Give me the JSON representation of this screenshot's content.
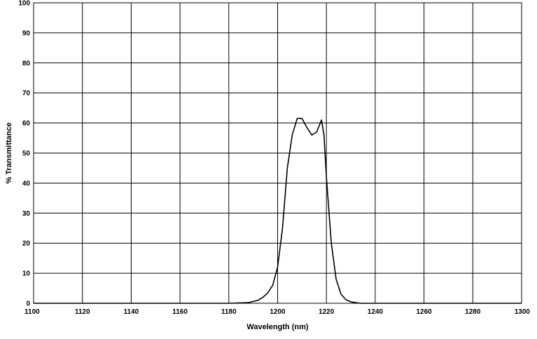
{
  "chart_data": {
    "type": "line",
    "title": "",
    "xlabel": "Wavelength (nm)",
    "ylabel": "% Transmittance",
    "xlim": [
      1100,
      1300
    ],
    "ylim": [
      0,
      100
    ],
    "x_ticks": [
      1100,
      1120,
      1140,
      1160,
      1180,
      1200,
      1220,
      1240,
      1260,
      1280,
      1300
    ],
    "y_ticks": [
      0,
      10,
      20,
      30,
      40,
      50,
      60,
      70,
      80,
      90,
      100
    ],
    "x_tick_labels": [
      "1100",
      "1120",
      "1140",
      "1160",
      "1180",
      "1200",
      "1220",
      "1240",
      "1260",
      "1280",
      "1300"
    ],
    "y_tick_labels": [
      "0",
      "10",
      "20",
      "30",
      "40",
      "50",
      "60",
      "70",
      "80",
      "90",
      "100"
    ],
    "grid": true,
    "legend": "none",
    "line_color": "#000000",
    "series": [
      {
        "x": [
          1100,
          1180,
          1188,
          1192,
          1194,
          1196,
          1198,
          1200,
          1202,
          1204,
          1206,
          1208,
          1210,
          1212,
          1214,
          1216,
          1218,
          1219,
          1220,
          1222,
          1224,
          1226,
          1228,
          1230,
          1232,
          1234,
          1300
        ],
        "y": [
          0,
          0,
          0.2,
          1,
          2,
          3.5,
          6,
          12,
          25,
          45,
          56,
          61.5,
          61.5,
          58.5,
          56,
          57,
          61,
          56,
          42,
          20,
          8,
          3,
          1.2,
          0.5,
          0.2,
          0,
          0
        ]
      }
    ]
  }
}
